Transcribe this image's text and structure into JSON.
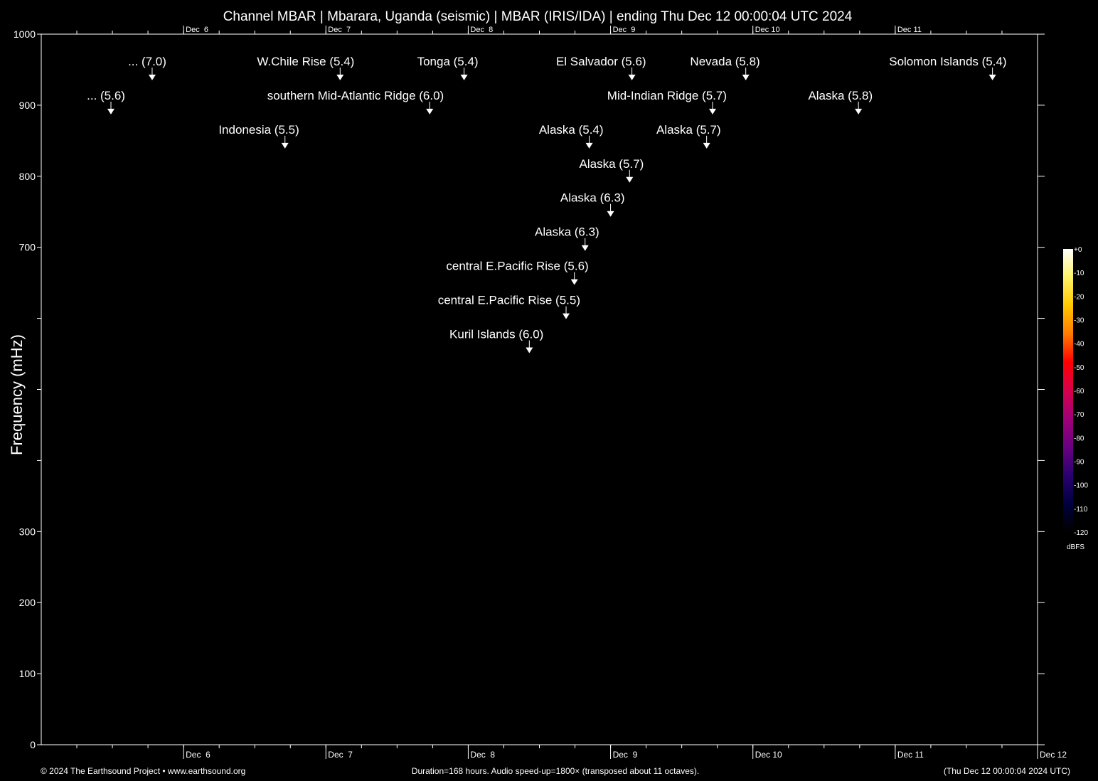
{
  "chart_data": {
    "type": "scatter",
    "title": "Channel MBAR | Mbarara, Uganda (seismic) | MBAR (IRIS/IDA) | ending Thu Dec 12 00:00:04 UTC 2024",
    "ylabel": "Frequency (mHz)",
    "xlabel": "",
    "xlim_hours": [
      0,
      168
    ],
    "ylim": [
      0,
      1000
    ],
    "x_ticks_every_hours": 6,
    "day_labels": [
      {
        "hour": 24,
        "label": "Dec  6"
      },
      {
        "hour": 48,
        "label": "Dec  7"
      },
      {
        "hour": 72,
        "label": "Dec  8"
      },
      {
        "hour": 96,
        "label": "Dec  9"
      },
      {
        "hour": 120,
        "label": "Dec 10"
      },
      {
        "hour": 144,
        "label": "Dec 11"
      },
      {
        "hour": 168,
        "label": "Dec 12"
      }
    ],
    "y_ticks": [
      {
        "value": 0,
        "label": "0"
      },
      {
        "value": 100,
        "label": "100"
      },
      {
        "value": 200,
        "label": "200"
      },
      {
        "value": 300,
        "label": "300"
      },
      {
        "value": 400,
        "label": ""
      },
      {
        "value": 500,
        "label": ""
      },
      {
        "value": 600,
        "label": ""
      },
      {
        "value": 700,
        "label": "700"
      },
      {
        "value": 800,
        "label": "800"
      },
      {
        "value": 900,
        "label": "900"
      },
      {
        "value": 1000,
        "label": "1000"
      }
    ],
    "events": [
      {
        "label": "... (5.6)",
        "hour": 11.75,
        "freq": 887
      },
      {
        "label": "... (7.0)",
        "hour": 18.7,
        "freq": 935
      },
      {
        "label": "Indonesia (5.5)",
        "hour": 41.1,
        "freq": 839
      },
      {
        "label": "W.Chile Rise (5.4)",
        "hour": 50.4,
        "freq": 935
      },
      {
        "label": "southern Mid-Atlantic Ridge (6.0)",
        "hour": 65.5,
        "freq": 887
      },
      {
        "label": "Tonga (5.4)",
        "hour": 71.3,
        "freq": 935
      },
      {
        "label": "Kuril Islands (6.0)",
        "hour": 82.3,
        "freq": 551
      },
      {
        "label": "central E.Pacific Rise (5.5)",
        "hour": 88.5,
        "freq": 599
      },
      {
        "label": "central E.Pacific Rise (5.6)",
        "hour": 89.9,
        "freq": 647
      },
      {
        "label": "Alaska (6.3)",
        "hour": 91.7,
        "freq": 695
      },
      {
        "label": "Alaska (5.4)",
        "hour": 92.4,
        "freq": 839
      },
      {
        "label": "Alaska (6.3)",
        "hour": 96.0,
        "freq": 743
      },
      {
        "label": "Alaska (5.7)",
        "hour": 99.2,
        "freq": 791
      },
      {
        "label": "El Salvador (5.6)",
        "hour": 99.6,
        "freq": 935
      },
      {
        "label": "Alaska (5.7)",
        "hour": 112.2,
        "freq": 839
      },
      {
        "label": "Mid-Indian Ridge (5.7)",
        "hour": 113.2,
        "freq": 887
      },
      {
        "label": "Nevada (5.8)",
        "hour": 118.8,
        "freq": 935
      },
      {
        "label": "Alaska (5.8)",
        "hour": 137.8,
        "freq": 887
      },
      {
        "label": "Solomon Islands (5.4)",
        "hour": 160.4,
        "freq": 935
      }
    ],
    "colorbar": {
      "unit": "dBFS",
      "range": [
        -120,
        0
      ],
      "tick_labels": [
        "+0",
        "-10",
        "-20",
        "-30",
        "-40",
        "-50",
        "-60",
        "-70",
        "-80",
        "-90",
        "-100",
        "-110",
        "-120"
      ],
      "colors": [
        "#ffffff",
        "#fff36a",
        "#ffc800",
        "#ff7a00",
        "#ff0000",
        "#d8004a",
        "#a00078",
        "#6a0080",
        "#2a0070",
        "#000040",
        "#000000"
      ]
    }
  },
  "footer": {
    "copyright": "© 2024 The Earthsound Project • www.earthsound.org",
    "info": "Duration=168 hours. Audio speed-up=1800× (transposed about 11 octaves).",
    "timestamp": "(Thu Dec 12 00:00:04 2024 UTC)"
  }
}
